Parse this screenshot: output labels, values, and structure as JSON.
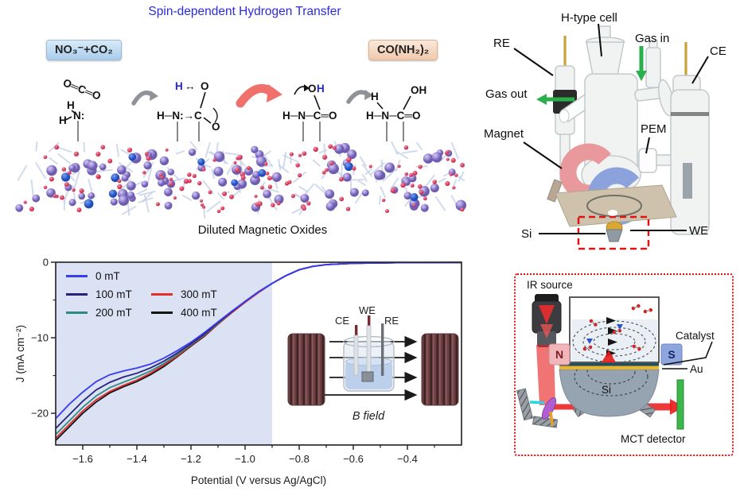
{
  "colors": {
    "title": "#2a2ae0",
    "blue_h": "#2424e0",
    "gray_arrow": "#8f9398",
    "red_arrow": "#f0716b",
    "green_arrow": "#29b04d",
    "gold": "#c9a23b",
    "magnet_pink": "#e9999b",
    "magnet_blue": "#8ba2dd",
    "dashed_red": "#e01212",
    "catalyst_layer": "#1c4f63",
    "au_layer": "#eab528",
    "detector_green": "#3cb84a",
    "coil": "#6e4044",
    "shade": "#dbe2f3",
    "axis": "#2b2b2b"
  },
  "header": {
    "title": "Spin-dependent Hydrogen Transfer"
  },
  "scheme": {
    "reactant": "NO₃⁻+CO₂",
    "product": "CO(NH₂)₂",
    "surface": "Diluted Magnetic Oxides",
    "mol1": {
      "co2": "O═C═O",
      "h1": "H",
      "h2": "H",
      "n": "N:"
    },
    "mol2": {
      "h": "H",
      "arrow": "↔",
      "o": "O",
      "chain": "H─N:→C",
      "o2": "O"
    },
    "mol3": {
      "o": "O",
      "h": "H",
      "chain": "H─N─C═O"
    },
    "mol4": {
      "h": "H",
      "oh": "OH",
      "chain": "H─N─C═O"
    }
  },
  "hcell": {
    "title": "H-type cell",
    "re": "RE",
    "gas_in": "Gas in",
    "ce": "CE",
    "gas_out": "Gas out",
    "magnet": "Magnet",
    "pem": "PEM",
    "si": "Si",
    "we": "WE"
  },
  "ir": {
    "source": "IR source",
    "n": "N",
    "s": "S",
    "catalyst": "Catalyst",
    "au": "Au",
    "si": "Si",
    "detector": "MCT detector"
  },
  "chart_data": {
    "type": "line",
    "title": "",
    "xlabel": "Potential (V versus Ag/AgCl)",
    "ylabel": "J (mA cm⁻²)",
    "xlim": [
      -1.7,
      -0.2
    ],
    "ylim": [
      0,
      -24.2
    ],
    "xticks": [
      -1.6,
      -1.4,
      -1.2,
      -1.0,
      -0.8,
      -0.6,
      -0.4
    ],
    "yticks": [
      0,
      -10,
      -20
    ],
    "grid": false,
    "legend_position": "upper-left",
    "shaded_region": {
      "from": -1.7,
      "to": -0.9
    },
    "x": [
      -1.7,
      -1.65,
      -1.6,
      -1.55,
      -1.5,
      -1.45,
      -1.4,
      -1.35,
      -1.3,
      -1.25,
      -1.2,
      -1.15,
      -1.1,
      -1.05,
      -1.0,
      -0.95,
      -0.9,
      -0.85,
      -0.8,
      -0.75,
      -0.7,
      -0.6,
      -0.5,
      -0.4,
      -0.3,
      -0.2
    ],
    "series": [
      {
        "label": "0 mT",
        "color": "#3a3af2",
        "values": [
          -20.7,
          -18.8,
          -17.2,
          -15.8,
          -14.9,
          -14.4,
          -14.0,
          -13.5,
          -12.7,
          -11.7,
          -10.6,
          -9.3,
          -7.9,
          -6.5,
          -5.2,
          -3.9,
          -2.8,
          -1.8,
          -1.0,
          -0.55,
          -0.32,
          -0.15,
          -0.08,
          -0.05,
          -0.04,
          -0.03
        ]
      },
      {
        "label": "100 mT",
        "color": "#23237e",
        "values": [
          -22.0,
          -20.2,
          -18.4,
          -16.9,
          -15.9,
          -15.2,
          -14.7,
          -14.0,
          -13.1,
          -12.0,
          -10.8,
          -9.5,
          -8.0,
          -6.6,
          -5.2,
          -3.9,
          -2.8,
          -1.8,
          -1.0,
          -0.55,
          -0.32,
          -0.15,
          -0.08,
          -0.05,
          -0.04,
          -0.03
        ]
      },
      {
        "label": "200 mT",
        "color": "#2e8b84",
        "values": [
          -22.8,
          -21.0,
          -19.2,
          -17.7,
          -16.6,
          -15.9,
          -15.2,
          -14.4,
          -13.4,
          -12.2,
          -10.9,
          -9.6,
          -8.1,
          -6.6,
          -5.2,
          -3.9,
          -2.8,
          -1.8,
          -1.0,
          -0.55,
          -0.32,
          -0.15,
          -0.08,
          -0.05,
          -0.04,
          -0.03
        ]
      },
      {
        "label": "300 mT",
        "color": "#e62e2e",
        "values": [
          -23.3,
          -21.5,
          -19.7,
          -18.2,
          -17.1,
          -16.3,
          -15.6,
          -14.7,
          -13.6,
          -12.4,
          -11.0,
          -9.7,
          -8.2,
          -6.7,
          -5.3,
          -4.0,
          -2.8,
          -1.8,
          -1.0,
          -0.55,
          -0.32,
          -0.15,
          -0.08,
          -0.05,
          -0.04,
          -0.03
        ]
      },
      {
        "label": "400 mT",
        "color": "#141414",
        "values": [
          -23.6,
          -21.8,
          -20.0,
          -18.5,
          -17.3,
          -16.5,
          -15.8,
          -14.9,
          -13.8,
          -12.5,
          -11.1,
          -9.8,
          -8.2,
          -6.7,
          -5.3,
          -4.0,
          -2.8,
          -1.8,
          -1.0,
          -0.55,
          -0.32,
          -0.15,
          -0.08,
          -0.05,
          -0.04,
          -0.03
        ]
      }
    ],
    "inset": {
      "ce": "CE",
      "we": "WE",
      "re": "RE",
      "b_field": "B field"
    }
  }
}
